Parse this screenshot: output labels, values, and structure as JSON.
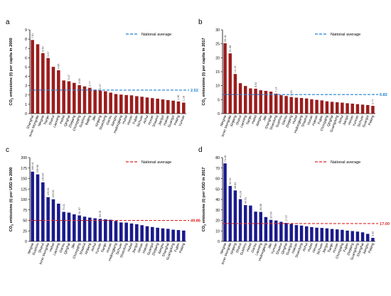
{
  "chart_data": [
    {
      "panel_label": "a",
      "type": "bar",
      "ylabel": "CO2 emissions (t) per capita in 2000",
      "ylim": [
        0,
        9
      ],
      "yticks": [
        0,
        1,
        2,
        3,
        4,
        5,
        6,
        7,
        8,
        9
      ],
      "bar_color": "#9b1c1c",
      "categories": [
        "Shanghai",
        "Inner Mongolia",
        "Ningxia",
        "Tianjin",
        "Shanxi",
        "Liaoning",
        "Hebei",
        "Qinghai",
        "Zhejiang",
        "Chongqing",
        "Guizhou",
        "Beijing",
        "Jilin",
        "Xinjiang",
        "Shandong",
        "Gansu",
        "Jiangsu",
        "Heilongjiang",
        "Hubei",
        "Henan",
        "Fujian",
        "Sichuan",
        "Anhui",
        "Hunan",
        "Shaanxi",
        "Jiangxi",
        "Hainan",
        "Guangxi",
        "Peking",
        "Yunnan"
      ],
      "values": [
        7.91,
        7.45,
        6.5,
        5.97,
        5.02,
        4.65,
        3.56,
        3.47,
        3.3,
        3.06,
        2.92,
        2.77,
        2.57,
        2.47,
        2.4,
        2.25,
        2.1,
        2.04,
        1.99,
        1.96,
        1.87,
        1.81,
        1.73,
        1.66,
        1.6,
        1.52,
        1.45,
        1.39,
        1.3,
        1.18
      ],
      "value_labels": [
        "7.91",
        "",
        "6.50",
        "5.97",
        "",
        "4.65",
        "",
        "3.47",
        "",
        "3.06",
        "",
        "2.77",
        "",
        "2.47",
        "",
        "",
        "",
        "",
        "",
        "",
        "",
        "",
        "",
        "",
        "",
        "",
        "",
        "",
        "1.30",
        "1.18"
      ],
      "reference_line": {
        "label": "National average",
        "value": 2.52,
        "value_label": "2.52",
        "color": "#1f7fd6"
      }
    },
    {
      "panel_label": "b",
      "type": "bar",
      "ylabel": "CO2 emissions (t) per capita in 2017",
      "ylim": [
        0,
        30
      ],
      "yticks": [
        0,
        5,
        10,
        15,
        20,
        25,
        30
      ],
      "bar_color": "#9b1c1c",
      "categories": [
        "Ningxia",
        "Inner Mongolia",
        "Xinjiang",
        "Shanxi",
        "Liaoning",
        "Tianjin",
        "Hebei",
        "Jiangsu",
        "Jilin",
        "Shanghai",
        "Shandong",
        "Guizhou",
        "Gansu",
        "Zhejiang",
        "Hubei",
        "Heilongjiang",
        "Shaanxi",
        "Hunan",
        "Hainan",
        "Fujian",
        "Chongqing",
        "Qinghai",
        "Guangdong",
        "Anhui",
        "Jiangxi",
        "Henan",
        "Yunnan",
        "Sichuan",
        "Guangxi",
        "Peking"
      ],
      "values": [
        25.18,
        21.56,
        14.19,
        10.89,
        9.89,
        9.02,
        8.92,
        8.37,
        8.14,
        7.86,
        7.14,
        6.59,
        6.3,
        5.94,
        5.7,
        5.59,
        5.41,
        5.1,
        4.91,
        4.73,
        4.39,
        4.21,
        4.05,
        3.92,
        3.7,
        3.56,
        3.38,
        3.21,
        3.05,
        2.77
      ],
      "value_labels": [
        "25.18",
        "21.56",
        "14.19",
        "",
        "",
        "",
        "8.92",
        "",
        "",
        "",
        "7.14",
        "",
        "",
        "5.94",
        "",
        "",
        "",
        "",
        "",
        "",
        "",
        "",
        "",
        "",
        "",
        "",
        "",
        "",
        "",
        "2.77"
      ],
      "reference_line": {
        "label": "National average",
        "value": 6.82,
        "value_label": "6.82",
        "color": "#1f7fd6"
      }
    },
    {
      "panel_label": "c",
      "type": "bar",
      "ylabel": "CO2 emissions (t) per USD in 2000",
      "ylim": [
        0,
        200
      ],
      "yticks": [
        0,
        25,
        50,
        75,
        100,
        125,
        150,
        175,
        200
      ],
      "bar_color": "#1a1a8c",
      "categories": [
        "Ningxia",
        "Guizhou",
        "Shanxi",
        "Inner Mongolia",
        "Hebei",
        "Liaoning",
        "Gansu",
        "Qinghai",
        "Jilin",
        "Chongqing",
        "Shaanxi",
        "Xinjiang",
        "Anhui",
        "Yunnan",
        "Tianjin",
        "Hunan",
        "Heilongjiang",
        "Sichuan",
        "Shandong",
        "Hubei",
        "Jiangxi",
        "Henan",
        "Hainan",
        "Guangxi",
        "Zhejiang",
        "Jiangsu",
        "Shanghai",
        "Guangdong",
        "Fujian",
        "Peking"
      ],
      "values": [
        166.41,
        159.96,
        140.87,
        105.51,
        100.51,
        89.95,
        70.41,
        68.62,
        64.55,
        61.97,
        58.95,
        56.71,
        55.05,
        53.78,
        52.65,
        51.48,
        48.72,
        45.19,
        44.69,
        42.65,
        40.91,
        38.54,
        36.08,
        34.26,
        32.45,
        30.97,
        29.84,
        27.78,
        26.91,
        25.74
      ],
      "value_labels": [
        "166.41",
        "159.96",
        "140.87",
        "105.51",
        "100.51",
        "",
        "70.41",
        "",
        "",
        "61.97",
        "",
        "",
        "",
        "53.78",
        "",
        "",
        "",
        "",
        "",
        "",
        "",
        "",
        "",
        "",
        "",
        "",
        "",
        "",
        "",
        ""
      ],
      "reference_line": {
        "label": "National average",
        "value": 49.86,
        "value_label": "49.86",
        "color": "#e02424"
      }
    },
    {
      "panel_label": "d",
      "type": "bar",
      "ylabel": "CO2 emissions (t) per USD in 2017",
      "ylim": [
        0,
        80
      ],
      "yticks": [
        0,
        10,
        20,
        30,
        40,
        50,
        60,
        70,
        80
      ],
      "bar_color": "#1a1a8c",
      "categories": [
        "Ningxia",
        "Inner Mongolia",
        "Xinjiang",
        "Shanxi",
        "Guizhou",
        "Hebei",
        "Gansu",
        "Liaoning",
        "Heilongjiang",
        "Jilin",
        "Yunnan",
        "Shaanxi",
        "Qinghai",
        "Guangxi",
        "Hainan",
        "Shandong",
        "Anhui",
        "Hubei",
        "Henan",
        "Sichuan",
        "Jiangxi",
        "Tianjin",
        "Hunan",
        "Chongqing",
        "Fujian",
        "Zhejiang",
        "Guangdong",
        "Shanghai",
        "Jiangsu",
        "Peking"
      ],
      "values": [
        74.46,
        52.94,
        48.63,
        40.29,
        34.61,
        34.17,
        28.37,
        28.08,
        23.21,
        20.54,
        19.88,
        18.66,
        17.57,
        16.64,
        15.52,
        15.05,
        14.33,
        13.61,
        13.04,
        12.81,
        12.37,
        11.81,
        11.42,
        10.98,
        10.26,
        9.84,
        9.31,
        8.63,
        7.14,
        3.32
      ],
      "value_labels": [
        "74.46",
        "52.94",
        "48.63",
        "40.29",
        "34.61",
        "",
        "",
        "28.08",
        "",
        "20.54",
        "",
        "",
        "17.57",
        "",
        "",
        "",
        "",
        "",
        "",
        "",
        "",
        "",
        "",
        "",
        "",
        "",
        "",
        "",
        "",
        "3.32"
      ],
      "reference_line": {
        "label": "National average",
        "value": 17.0,
        "value_label": "17.00",
        "color": "#e02424"
      }
    }
  ]
}
